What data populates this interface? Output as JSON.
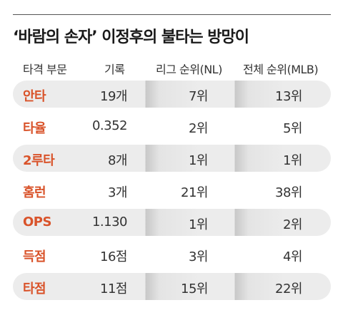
{
  "title": "‘바람의 손자’ 이정후의 불타는 방망이",
  "headers": {
    "category": "타격 부문",
    "record": "기록",
    "league_rank": "리그 순위(NL)",
    "overall_rank": "전체 순위(MLB)"
  },
  "rows": [
    {
      "category": "안타",
      "record": "19개",
      "league_rank": "7위",
      "overall_rank": "13위"
    },
    {
      "category": "타율",
      "record": "0.352",
      "league_rank": "2위",
      "overall_rank": "5위"
    },
    {
      "category": "2루타",
      "record": "8개",
      "league_rank": "1위",
      "overall_rank": "1위"
    },
    {
      "category": "홈런",
      "record": "3개",
      "league_rank": "21위",
      "overall_rank": "38위"
    },
    {
      "category": "OPS",
      "record": "1.130",
      "league_rank": "1위",
      "overall_rank": "2위"
    },
    {
      "category": "득점",
      "record": "16점",
      "league_rank": "3위",
      "overall_rank": "4위"
    },
    {
      "category": "타점",
      "record": "11점",
      "league_rank": "15위",
      "overall_rank": "22위"
    }
  ],
  "colors": {
    "category_text": "#d9532a",
    "row_shade": "#ececec"
  }
}
